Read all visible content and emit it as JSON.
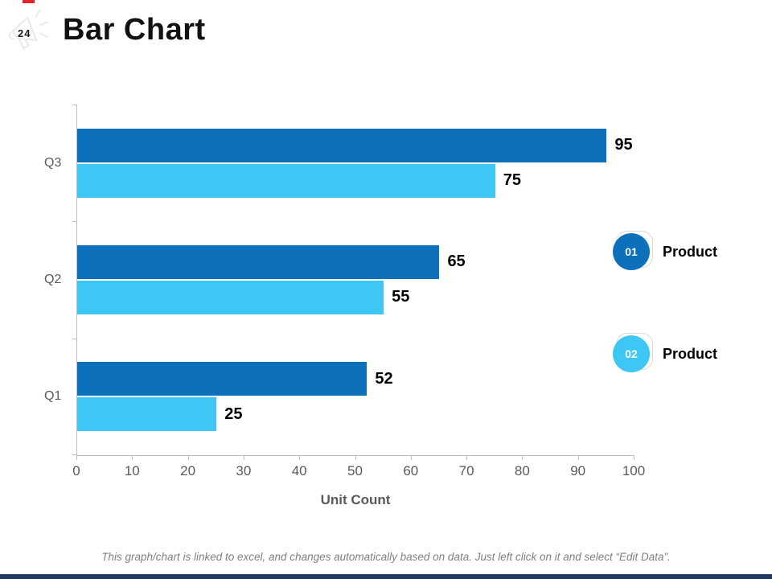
{
  "slide": {
    "page_number": "24",
    "title": "Bar Chart",
    "footer": "This graph/chart is linked to excel, and changes automatically based on data. Just left click on it and select “Edit Data”."
  },
  "legend": [
    {
      "badge": "01",
      "label": "Product",
      "color": "#0c70ba"
    },
    {
      "badge": "02",
      "label": "Product",
      "color": "#3ec6f5"
    }
  ],
  "icons": {
    "megaphone": "megaphone-sketch-icon"
  },
  "colors": {
    "series1": "#0c70ba",
    "series2": "#3ec6f5",
    "axis": "#bfbfbf",
    "tick_text": "#595959",
    "accent_red": "#e02427",
    "bottom_strip": "#1f3864"
  },
  "chart_data": {
    "type": "bar",
    "orientation": "horizontal",
    "title": "Bar Chart",
    "categories": [
      "Q3",
      "Q2",
      "Q1"
    ],
    "series": [
      {
        "name": "Product 01",
        "color": "#0c70ba",
        "values": [
          95,
          65,
          52
        ]
      },
      {
        "name": "Product 02",
        "color": "#3ec6f5",
        "values": [
          75,
          55,
          25
        ]
      }
    ],
    "value_labels": [
      [
        95,
        65,
        52
      ],
      [
        75,
        55,
        25
      ]
    ],
    "xlabel": "Unit Count",
    "xlim": [
      0,
      100
    ],
    "xticks": [
      0,
      10,
      20,
      30,
      40,
      50,
      60,
      70,
      80,
      90,
      100
    ],
    "grid": false,
    "legend_position": "right"
  }
}
